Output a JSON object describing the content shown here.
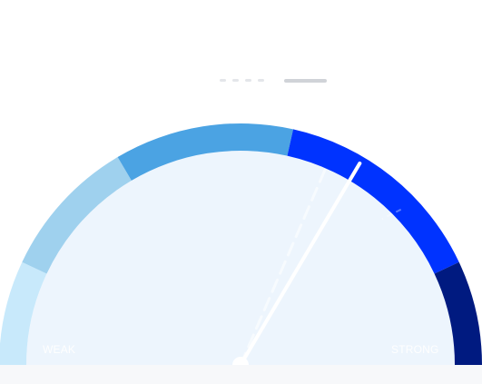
{
  "gauge": {
    "scale_min_label": "WEAK",
    "scale_max_label": "STRONG",
    "needle_value": 0.67,
    "ghost_needle_value": 0.63,
    "segments": [
      {
        "from": 0.0,
        "to": 0.14,
        "color": "#c8e9fb"
      },
      {
        "from": 0.14,
        "to": 0.33,
        "color": "#9fd1ee"
      },
      {
        "from": 0.33,
        "to": 0.57,
        "color": "#4ba3e3"
      },
      {
        "from": 0.57,
        "to": 0.86,
        "color": "#0033ff"
      },
      {
        "from": 0.86,
        "to": 1.0,
        "color": "#001a80"
      }
    ],
    "dial_face_color": "#edf5fd"
  }
}
